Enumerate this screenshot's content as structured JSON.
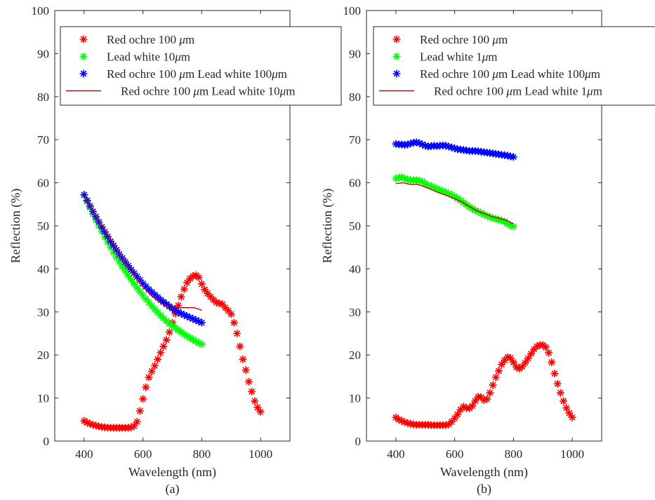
{
  "chart_data": [
    {
      "type": "scatter",
      "panel_label": "(a)",
      "xlabel": "Wavelength (nm)",
      "ylabel": "Reflection (%)",
      "xlim": [
        300,
        1100
      ],
      "ylim": [
        0,
        100
      ],
      "xticks": [
        400,
        600,
        800,
        1000
      ],
      "yticks": [
        0,
        10,
        20,
        30,
        40,
        50,
        60,
        70,
        80,
        90,
        100
      ],
      "legend_position": "top",
      "series": [
        {
          "name": "Red ochre 100 μm",
          "marker": "star",
          "color": "#ff0000",
          "x": [
            400,
            410,
            420,
            430,
            440,
            450,
            460,
            470,
            480,
            490,
            500,
            510,
            520,
            530,
            540,
            550,
            560,
            570,
            580,
            590,
            600,
            610,
            620,
            630,
            640,
            650,
            660,
            670,
            680,
            690,
            700,
            710,
            720,
            730,
            740,
            750,
            760,
            770,
            780,
            790,
            800,
            810,
            820,
            830,
            840,
            850,
            860,
            870,
            880,
            890,
            900,
            910,
            920,
            930,
            940,
            950,
            960,
            970,
            980,
            990,
            1000
          ],
          "y": [
            4.7,
            4.3,
            4.0,
            3.8,
            3.6,
            3.4,
            3.3,
            3.2,
            3.15,
            3.1,
            3.1,
            3.1,
            3.1,
            3.1,
            3.1,
            3.1,
            3.2,
            3.5,
            4.5,
            7.0,
            9.8,
            12.5,
            14.8,
            16.2,
            17.5,
            19.0,
            20.5,
            22.0,
            23.5,
            25.3,
            27.5,
            29.6,
            31.5,
            33.5,
            35.3,
            36.8,
            37.7,
            38.3,
            38.5,
            38.0,
            36.5,
            35.2,
            34.3,
            33.5,
            32.8,
            32.2,
            32.0,
            31.8,
            31.0,
            30.3,
            29.5,
            27.5,
            25.0,
            22.0,
            19.0,
            16.5,
            13.8,
            11.5,
            9.3,
            7.8,
            6.8
          ]
        },
        {
          "name": "Lead white 10μm",
          "marker": "star",
          "color": "#00ff00",
          "x": [
            400,
            410,
            420,
            430,
            440,
            450,
            460,
            470,
            480,
            490,
            500,
            510,
            520,
            530,
            540,
            550,
            560,
            570,
            580,
            590,
            600,
            610,
            620,
            630,
            640,
            650,
            660,
            670,
            680,
            690,
            700,
            710,
            720,
            730,
            740,
            750,
            760,
            770,
            780,
            790,
            800
          ],
          "y": [
            57.2,
            55.7,
            54.2,
            52.8,
            51.4,
            50.0,
            48.7,
            47.4,
            46.2,
            45.0,
            43.8,
            42.7,
            41.6,
            40.5,
            39.5,
            38.5,
            37.5,
            36.5,
            35.6,
            34.7,
            33.8,
            33.0,
            32.2,
            31.4,
            30.6,
            29.9,
            29.2,
            28.5,
            27.9,
            27.3,
            26.8,
            26.3,
            25.8,
            25.3,
            24.8,
            24.4,
            24.0,
            23.6,
            23.2,
            22.8,
            22.5
          ]
        },
        {
          "name": "Red ochre 100 μm Lead white 100μm",
          "marker": "star",
          "color": "#0000ff",
          "x": [
            400,
            410,
            420,
            430,
            440,
            450,
            460,
            470,
            480,
            490,
            500,
            510,
            520,
            530,
            540,
            550,
            560,
            570,
            580,
            590,
            600,
            610,
            620,
            630,
            640,
            650,
            660,
            670,
            680,
            690,
            700,
            710,
            720,
            730,
            740,
            750,
            760,
            770,
            780,
            790,
            800
          ],
          "y": [
            57.2,
            55.9,
            54.6,
            53.3,
            52.1,
            50.9,
            49.7,
            48.6,
            47.5,
            46.4,
            45.4,
            44.4,
            43.4,
            42.5,
            41.6,
            40.7,
            39.8,
            39.0,
            38.2,
            37.4,
            36.6,
            35.9,
            35.2,
            34.6,
            34.0,
            33.4,
            32.8,
            32.3,
            31.8,
            31.3,
            30.8,
            30.4,
            30.0,
            29.6,
            29.3,
            29.0,
            28.7,
            28.4,
            28.1,
            27.8,
            27.5
          ]
        },
        {
          "name": "Red ochre 100 μm Lead white 10μm",
          "marker": "line",
          "color": "#cc0000",
          "x": [
            400,
            425,
            450,
            475,
            500,
            525,
            550,
            575,
            600,
            625,
            650,
            675,
            700,
            725,
            750,
            775,
            800
          ],
          "y": [
            57.0,
            54.2,
            51.3,
            48.5,
            45.7,
            43.0,
            40.4,
            38.0,
            35.9,
            34.0,
            32.6,
            31.5,
            31.0,
            31.0,
            31.0,
            31.0,
            30.4
          ]
        }
      ]
    },
    {
      "type": "scatter",
      "panel_label": "(b)",
      "xlabel": "Wavelength (nm)",
      "ylabel": "Reflection (%)",
      "xlim": [
        300,
        1100
      ],
      "ylim": [
        0,
        100
      ],
      "xticks": [
        400,
        600,
        800,
        1000
      ],
      "yticks": [
        0,
        10,
        20,
        30,
        40,
        50,
        60,
        70,
        80,
        90,
        100
      ],
      "legend_position": "top",
      "series": [
        {
          "name": "Red ochre 100 μm",
          "marker": "star",
          "color": "#ff0000",
          "x": [
            400,
            410,
            420,
            430,
            440,
            450,
            460,
            470,
            480,
            490,
            500,
            510,
            520,
            530,
            540,
            550,
            560,
            570,
            580,
            590,
            600,
            610,
            620,
            630,
            640,
            650,
            660,
            670,
            680,
            690,
            700,
            710,
            720,
            730,
            740,
            750,
            760,
            770,
            780,
            790,
            800,
            810,
            820,
            830,
            840,
            850,
            860,
            870,
            880,
            890,
            900,
            910,
            920,
            930,
            940,
            950,
            960,
            970,
            980,
            990,
            1000
          ],
          "y": [
            5.5,
            5.0,
            4.7,
            4.4,
            4.2,
            4.0,
            3.9,
            3.8,
            3.8,
            3.8,
            3.8,
            3.8,
            3.7,
            3.7,
            3.7,
            3.7,
            3.7,
            3.7,
            3.9,
            4.5,
            5.3,
            6.2,
            7.3,
            8.0,
            7.7,
            7.6,
            8.2,
            9.3,
            10.3,
            10.2,
            9.5,
            9.8,
            11.2,
            13.0,
            14.8,
            16.3,
            17.8,
            18.8,
            19.5,
            19.3,
            18.3,
            17.2,
            16.8,
            17.3,
            18.2,
            19.2,
            20.3,
            21.3,
            22.0,
            22.3,
            22.3,
            21.8,
            20.5,
            18.3,
            15.7,
            13.3,
            11.2,
            9.3,
            7.7,
            6.5,
            5.5
          ]
        },
        {
          "name": "Lead white 1μm",
          "marker": "star",
          "color": "#00ff00",
          "x": [
            400,
            410,
            420,
            430,
            440,
            450,
            460,
            470,
            480,
            490,
            500,
            510,
            520,
            530,
            540,
            550,
            560,
            570,
            580,
            590,
            600,
            610,
            620,
            630,
            640,
            650,
            660,
            670,
            680,
            690,
            700,
            710,
            720,
            730,
            740,
            750,
            760,
            770,
            780,
            790,
            800
          ],
          "y": [
            61.0,
            61.2,
            61.3,
            61.0,
            60.8,
            60.6,
            60.6,
            60.6,
            60.5,
            60.3,
            59.8,
            59.4,
            59.2,
            58.9,
            58.6,
            58.3,
            58.1,
            57.8,
            57.5,
            57.2,
            56.8,
            56.4,
            55.9,
            55.4,
            54.9,
            54.4,
            54.0,
            53.6,
            53.3,
            53.0,
            52.6,
            52.3,
            52.0,
            51.8,
            51.6,
            51.4,
            51.2,
            51.0,
            50.5,
            50.1,
            49.8
          ]
        },
        {
          "name": "Red ochre 100 μm Lead white 100μm",
          "marker": "star",
          "color": "#0000ff",
          "x": [
            400,
            410,
            420,
            430,
            440,
            450,
            460,
            470,
            480,
            490,
            500,
            510,
            520,
            530,
            540,
            550,
            560,
            570,
            580,
            590,
            600,
            610,
            620,
            630,
            640,
            650,
            660,
            670,
            680,
            690,
            700,
            710,
            720,
            730,
            740,
            750,
            760,
            770,
            780,
            790,
            800
          ],
          "y": [
            69.0,
            68.9,
            68.9,
            68.8,
            68.9,
            69.1,
            69.3,
            69.4,
            69.2,
            68.9,
            68.6,
            68.4,
            68.5,
            68.6,
            68.5,
            68.6,
            68.7,
            68.6,
            68.4,
            68.2,
            68.0,
            67.8,
            67.7,
            67.6,
            67.5,
            67.4,
            67.4,
            67.4,
            67.3,
            67.2,
            67.1,
            67.0,
            66.9,
            66.8,
            66.7,
            66.6,
            66.5,
            66.4,
            66.3,
            66.1,
            66.0
          ]
        },
        {
          "name": "Red ochre 100 μm Lead white 1μm",
          "marker": "line",
          "color": "#cc0000",
          "x": [
            400,
            425,
            450,
            475,
            500,
            525,
            550,
            575,
            600,
            625,
            650,
            675,
            700,
            725,
            750,
            775,
            800
          ],
          "y": [
            59.8,
            60.0,
            59.6,
            59.6,
            59.0,
            58.3,
            57.6,
            57.0,
            56.3,
            55.5,
            54.5,
            53.5,
            52.9,
            52.2,
            51.8,
            51.3,
            50.4
          ]
        }
      ]
    }
  ]
}
